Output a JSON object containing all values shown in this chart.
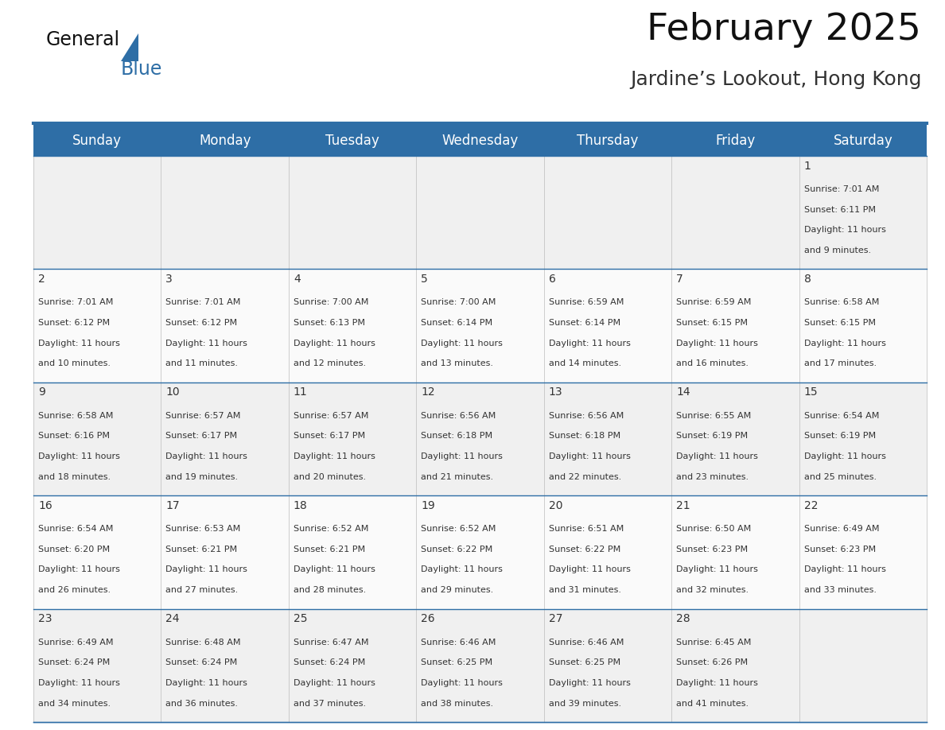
{
  "title": "February 2025",
  "subtitle": "Jardine’s Lookout, Hong Kong",
  "header_bg": "#2E6EA6",
  "header_text": "#FFFFFF",
  "cell_bg_odd": "#F0F0F0",
  "cell_bg_even": "#FAFAFA",
  "day_headers": [
    "Sunday",
    "Monday",
    "Tuesday",
    "Wednesday",
    "Thursday",
    "Friday",
    "Saturday"
  ],
  "header_fontsize": 12,
  "day_num_fontsize": 10,
  "cell_fontsize": 8,
  "title_fontsize": 34,
  "subtitle_fontsize": 18,
  "logo_general_fontsize": 17,
  "logo_blue_fontsize": 17,
  "line_color": "#2E6EA6",
  "text_color": "#333333",
  "days_data": [
    {
      "day": 1,
      "col": 6,
      "row": 0,
      "sunrise": "7:01 AM",
      "sunset": "6:11 PM",
      "daylight_h": "11 hours",
      "daylight_m": "and 9 minutes."
    },
    {
      "day": 2,
      "col": 0,
      "row": 1,
      "sunrise": "7:01 AM",
      "sunset": "6:12 PM",
      "daylight_h": "11 hours",
      "daylight_m": "and 10 minutes."
    },
    {
      "day": 3,
      "col": 1,
      "row": 1,
      "sunrise": "7:01 AM",
      "sunset": "6:12 PM",
      "daylight_h": "11 hours",
      "daylight_m": "and 11 minutes."
    },
    {
      "day": 4,
      "col": 2,
      "row": 1,
      "sunrise": "7:00 AM",
      "sunset": "6:13 PM",
      "daylight_h": "11 hours",
      "daylight_m": "and 12 minutes."
    },
    {
      "day": 5,
      "col": 3,
      "row": 1,
      "sunrise": "7:00 AM",
      "sunset": "6:14 PM",
      "daylight_h": "11 hours",
      "daylight_m": "and 13 minutes."
    },
    {
      "day": 6,
      "col": 4,
      "row": 1,
      "sunrise": "6:59 AM",
      "sunset": "6:14 PM",
      "daylight_h": "11 hours",
      "daylight_m": "and 14 minutes."
    },
    {
      "day": 7,
      "col": 5,
      "row": 1,
      "sunrise": "6:59 AM",
      "sunset": "6:15 PM",
      "daylight_h": "11 hours",
      "daylight_m": "and 16 minutes."
    },
    {
      "day": 8,
      "col": 6,
      "row": 1,
      "sunrise": "6:58 AM",
      "sunset": "6:15 PM",
      "daylight_h": "11 hours",
      "daylight_m": "and 17 minutes."
    },
    {
      "day": 9,
      "col": 0,
      "row": 2,
      "sunrise": "6:58 AM",
      "sunset": "6:16 PM",
      "daylight_h": "11 hours",
      "daylight_m": "and 18 minutes."
    },
    {
      "day": 10,
      "col": 1,
      "row": 2,
      "sunrise": "6:57 AM",
      "sunset": "6:17 PM",
      "daylight_h": "11 hours",
      "daylight_m": "and 19 minutes."
    },
    {
      "day": 11,
      "col": 2,
      "row": 2,
      "sunrise": "6:57 AM",
      "sunset": "6:17 PM",
      "daylight_h": "11 hours",
      "daylight_m": "and 20 minutes."
    },
    {
      "day": 12,
      "col": 3,
      "row": 2,
      "sunrise": "6:56 AM",
      "sunset": "6:18 PM",
      "daylight_h": "11 hours",
      "daylight_m": "and 21 minutes."
    },
    {
      "day": 13,
      "col": 4,
      "row": 2,
      "sunrise": "6:56 AM",
      "sunset": "6:18 PM",
      "daylight_h": "11 hours",
      "daylight_m": "and 22 minutes."
    },
    {
      "day": 14,
      "col": 5,
      "row": 2,
      "sunrise": "6:55 AM",
      "sunset": "6:19 PM",
      "daylight_h": "11 hours",
      "daylight_m": "and 23 minutes."
    },
    {
      "day": 15,
      "col": 6,
      "row": 2,
      "sunrise": "6:54 AM",
      "sunset": "6:19 PM",
      "daylight_h": "11 hours",
      "daylight_m": "and 25 minutes."
    },
    {
      "day": 16,
      "col": 0,
      "row": 3,
      "sunrise": "6:54 AM",
      "sunset": "6:20 PM",
      "daylight_h": "11 hours",
      "daylight_m": "and 26 minutes."
    },
    {
      "day": 17,
      "col": 1,
      "row": 3,
      "sunrise": "6:53 AM",
      "sunset": "6:21 PM",
      "daylight_h": "11 hours",
      "daylight_m": "and 27 minutes."
    },
    {
      "day": 18,
      "col": 2,
      "row": 3,
      "sunrise": "6:52 AM",
      "sunset": "6:21 PM",
      "daylight_h": "11 hours",
      "daylight_m": "and 28 minutes."
    },
    {
      "day": 19,
      "col": 3,
      "row": 3,
      "sunrise": "6:52 AM",
      "sunset": "6:22 PM",
      "daylight_h": "11 hours",
      "daylight_m": "and 29 minutes."
    },
    {
      "day": 20,
      "col": 4,
      "row": 3,
      "sunrise": "6:51 AM",
      "sunset": "6:22 PM",
      "daylight_h": "11 hours",
      "daylight_m": "and 31 minutes."
    },
    {
      "day": 21,
      "col": 5,
      "row": 3,
      "sunrise": "6:50 AM",
      "sunset": "6:23 PM",
      "daylight_h": "11 hours",
      "daylight_m": "and 32 minutes."
    },
    {
      "day": 22,
      "col": 6,
      "row": 3,
      "sunrise": "6:49 AM",
      "sunset": "6:23 PM",
      "daylight_h": "11 hours",
      "daylight_m": "and 33 minutes."
    },
    {
      "day": 23,
      "col": 0,
      "row": 4,
      "sunrise": "6:49 AM",
      "sunset": "6:24 PM",
      "daylight_h": "11 hours",
      "daylight_m": "and 34 minutes."
    },
    {
      "day": 24,
      "col": 1,
      "row": 4,
      "sunrise": "6:48 AM",
      "sunset": "6:24 PM",
      "daylight_h": "11 hours",
      "daylight_m": "and 36 minutes."
    },
    {
      "day": 25,
      "col": 2,
      "row": 4,
      "sunrise": "6:47 AM",
      "sunset": "6:24 PM",
      "daylight_h": "11 hours",
      "daylight_m": "and 37 minutes."
    },
    {
      "day": 26,
      "col": 3,
      "row": 4,
      "sunrise": "6:46 AM",
      "sunset": "6:25 PM",
      "daylight_h": "11 hours",
      "daylight_m": "and 38 minutes."
    },
    {
      "day": 27,
      "col": 4,
      "row": 4,
      "sunrise": "6:46 AM",
      "sunset": "6:25 PM",
      "daylight_h": "11 hours",
      "daylight_m": "and 39 minutes."
    },
    {
      "day": 28,
      "col": 5,
      "row": 4,
      "sunrise": "6:45 AM",
      "sunset": "6:26 PM",
      "daylight_h": "11 hours",
      "daylight_m": "and 41 minutes."
    }
  ]
}
